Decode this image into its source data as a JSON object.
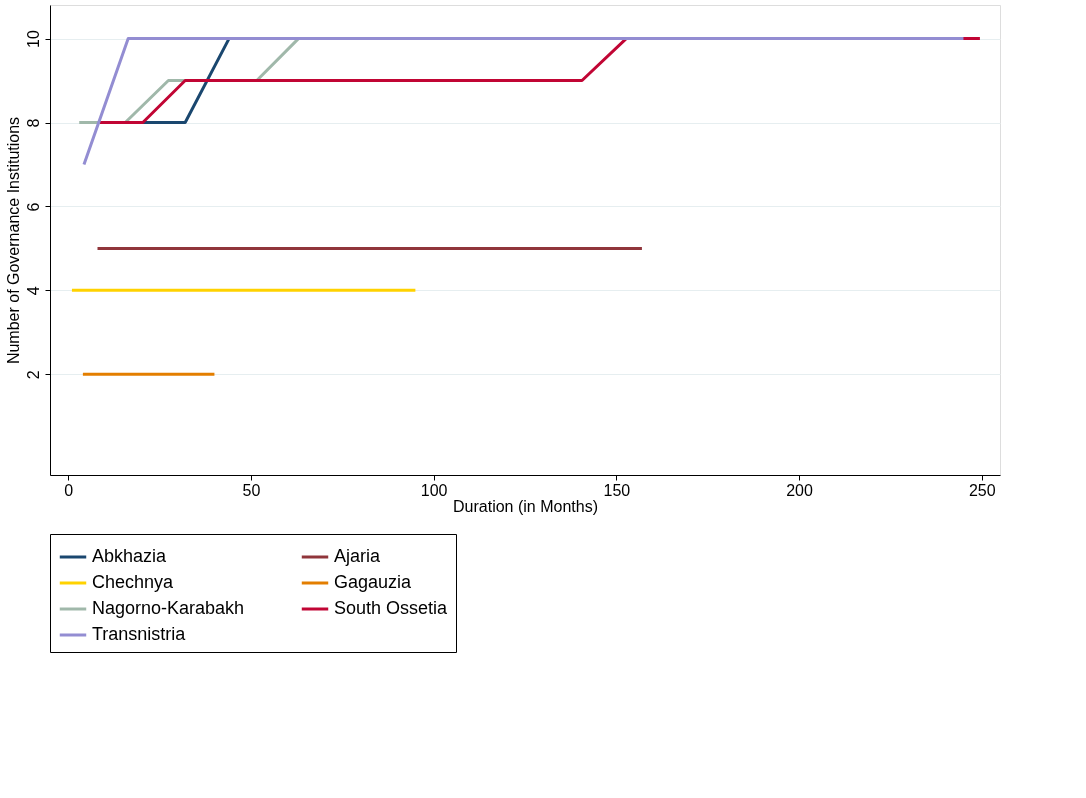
{
  "chart_data": {
    "type": "line",
    "xlabel": "Duration (in Months)",
    "ylabel": "Number of Governance Institutions",
    "xlim": [
      -5,
      255
    ],
    "ylim": [
      -0.4,
      10.8
    ],
    "xticks": [
      0,
      50,
      100,
      150,
      200,
      250
    ],
    "yticks": [
      2,
      4,
      6,
      8,
      10
    ],
    "grid": "y",
    "legend": "bottom",
    "line_style": "solid",
    "marker": "none",
    "series": [
      {
        "name": "Abkhazia",
        "color": "#1a476f",
        "x": [
          20.4,
          32,
          44
        ],
        "values": [
          8,
          8,
          10
        ]
      },
      {
        "name": "Ajaria",
        "color": "#90353b",
        "x": [
          8,
          157
        ],
        "values": [
          5,
          5
        ]
      },
      {
        "name": "Chechnya",
        "color": "#ffd200",
        "x": [
          1,
          95
        ],
        "values": [
          4,
          4
        ]
      },
      {
        "name": "Gagauzia",
        "color": "#e37e00",
        "x": [
          4,
          40
        ],
        "values": [
          2,
          2
        ]
      },
      {
        "name": "Nagorno-Karabakh",
        "color": "#a0b8aa",
        "x": [
          3,
          15.6,
          27.4,
          51.6,
          63
        ],
        "values": [
          8,
          8,
          9,
          9,
          10
        ]
      },
      {
        "name": "South Ossetia",
        "color": "#c10534",
        "x": [
          8.6,
          20.4,
          32,
          140.6,
          152.7,
          249.5
        ],
        "values": [
          8,
          8,
          9,
          9,
          10,
          10
        ]
      },
      {
        "name": "Transnistria",
        "color": "#938dd2",
        "x": [
          4.3,
          16.4,
          245
        ],
        "values": [
          7,
          10,
          10
        ]
      }
    ]
  }
}
